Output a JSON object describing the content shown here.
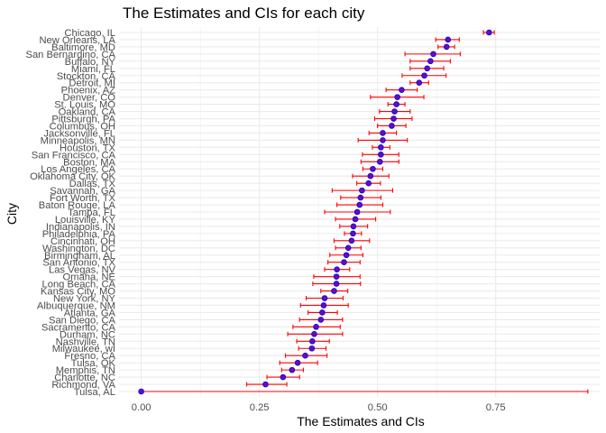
{
  "chart_data": {
    "type": "scatter",
    "title": "The Estimates and CIs for each city",
    "xlabel": "The Estimates and CIs",
    "ylabel": "City",
    "xlim": [
      -0.047,
      0.97
    ],
    "x_ticks": [
      0,
      0.25,
      0.5,
      0.75
    ],
    "x_tick_labels": [
      "0.00",
      "0.25",
      "0.50",
      "0.75"
    ],
    "grid": true,
    "error_bar_color": "#ff0000",
    "point_color": "#6a0dad",
    "point_outline_color": "#0000ff",
    "gridline_color": "#ebebeb",
    "series": [
      {
        "points": [
          {
            "city": "Chicago, IL",
            "estimate": 0.736,
            "lower": 0.724,
            "upper": 0.747
          },
          {
            "city": "New Orleans, LA",
            "estimate": 0.649,
            "lower": 0.623,
            "upper": 0.673
          },
          {
            "city": "Baltimore, MD",
            "estimate": 0.646,
            "lower": 0.628,
            "upper": 0.663
          },
          {
            "city": "San Bernardino, CA",
            "estimate": 0.618,
            "lower": 0.558,
            "upper": 0.675
          },
          {
            "city": "Buffalo, NY",
            "estimate": 0.612,
            "lower": 0.569,
            "upper": 0.654
          },
          {
            "city": "Miami, FL",
            "estimate": 0.605,
            "lower": 0.569,
            "upper": 0.64
          },
          {
            "city": "Stockton, CA",
            "estimate": 0.599,
            "lower": 0.552,
            "upper": 0.645
          },
          {
            "city": "Detroit, MI",
            "estimate": 0.588,
            "lower": 0.569,
            "upper": 0.608
          },
          {
            "city": "Phoenix, AZ",
            "estimate": 0.551,
            "lower": 0.518,
            "upper": 0.584
          },
          {
            "city": "Denver, CO",
            "estimate": 0.542,
            "lower": 0.485,
            "upper": 0.598
          },
          {
            "city": "St. Louis, MO",
            "estimate": 0.54,
            "lower": 0.522,
            "upper": 0.558
          },
          {
            "city": "Oakland, CA",
            "estimate": 0.536,
            "lower": 0.504,
            "upper": 0.569
          },
          {
            "city": "Pittsburgh, PA",
            "estimate": 0.534,
            "lower": 0.494,
            "upper": 0.573
          },
          {
            "city": "Columbus, OH",
            "estimate": 0.53,
            "lower": 0.5,
            "upper": 0.56
          },
          {
            "city": "Jacksonville, FL",
            "estimate": 0.511,
            "lower": 0.482,
            "upper": 0.54
          },
          {
            "city": "Minneapolis, MN",
            "estimate": 0.511,
            "lower": 0.459,
            "upper": 0.563
          },
          {
            "city": "Houston, TX",
            "estimate": 0.507,
            "lower": 0.489,
            "upper": 0.526
          },
          {
            "city": "San Francisco, CA",
            "estimate": 0.507,
            "lower": 0.468,
            "upper": 0.545
          },
          {
            "city": "Boston, MA",
            "estimate": 0.505,
            "lower": 0.465,
            "upper": 0.545
          },
          {
            "city": "Los Angeles, CA",
            "estimate": 0.49,
            "lower": 0.469,
            "upper": 0.511
          },
          {
            "city": "Oklahoma City, OK",
            "estimate": 0.485,
            "lower": 0.447,
            "upper": 0.524
          },
          {
            "city": "Dallas, TX",
            "estimate": 0.481,
            "lower": 0.456,
            "upper": 0.506
          },
          {
            "city": "Savannah, GA",
            "estimate": 0.467,
            "lower": 0.404,
            "upper": 0.532
          },
          {
            "city": "Fort Worth, TX",
            "estimate": 0.464,
            "lower": 0.422,
            "upper": 0.507
          },
          {
            "city": "Baton Rouge, LA",
            "estimate": 0.462,
            "lower": 0.414,
            "upper": 0.511
          },
          {
            "city": "Tampa, FL",
            "estimate": 0.457,
            "lower": 0.388,
            "upper": 0.527
          },
          {
            "city": "Louisville, KY",
            "estimate": 0.453,
            "lower": 0.411,
            "upper": 0.496
          },
          {
            "city": "Indianapolis, IN",
            "estimate": 0.449,
            "lower": 0.42,
            "upper": 0.479
          },
          {
            "city": "Philadelphia, PA",
            "estimate": 0.448,
            "lower": 0.43,
            "upper": 0.466
          },
          {
            "city": "Cincinnati, OH",
            "estimate": 0.445,
            "lower": 0.408,
            "upper": 0.483
          },
          {
            "city": "Washington, DC",
            "estimate": 0.438,
            "lower": 0.411,
            "upper": 0.465
          },
          {
            "city": "Birmingham, AL",
            "estimate": 0.434,
            "lower": 0.399,
            "upper": 0.469
          },
          {
            "city": "San Antonio, TX",
            "estimate": 0.429,
            "lower": 0.395,
            "upper": 0.463
          },
          {
            "city": "Las Vegas, NV",
            "estimate": 0.414,
            "lower": 0.388,
            "upper": 0.441
          },
          {
            "city": "Omaha, NE",
            "estimate": 0.413,
            "lower": 0.365,
            "upper": 0.463
          },
          {
            "city": "Long Beach, CA",
            "estimate": 0.413,
            "lower": 0.363,
            "upper": 0.464
          },
          {
            "city": "Kansas City, MO",
            "estimate": 0.408,
            "lower": 0.38,
            "upper": 0.437
          },
          {
            "city": "New York, NY",
            "estimate": 0.388,
            "lower": 0.349,
            "upper": 0.427
          },
          {
            "city": "Albuquerque, NM",
            "estimate": 0.386,
            "lower": 0.337,
            "upper": 0.438
          },
          {
            "city": "Atlanta, GA",
            "estimate": 0.383,
            "lower": 0.353,
            "upper": 0.415
          },
          {
            "city": "San Diego, CA",
            "estimate": 0.38,
            "lower": 0.335,
            "upper": 0.426
          },
          {
            "city": "Sacramento, CA",
            "estimate": 0.37,
            "lower": 0.321,
            "upper": 0.421
          },
          {
            "city": "Durham, NC",
            "estimate": 0.366,
            "lower": 0.31,
            "upper": 0.426
          },
          {
            "city": "Nashville, TN",
            "estimate": 0.362,
            "lower": 0.329,
            "upper": 0.398
          },
          {
            "city": "Milwaukee, wI",
            "estimate": 0.361,
            "lower": 0.333,
            "upper": 0.391
          },
          {
            "city": "Fresno, CA",
            "estimate": 0.347,
            "lower": 0.305,
            "upper": 0.393
          },
          {
            "city": "Tulsa, OK",
            "estimate": 0.331,
            "lower": 0.293,
            "upper": 0.373
          },
          {
            "city": "Memphis, TN",
            "estimate": 0.319,
            "lower": 0.297,
            "upper": 0.343
          },
          {
            "city": "Charlotte, NC",
            "estimate": 0.3,
            "lower": 0.266,
            "upper": 0.335
          },
          {
            "city": "Richmond, VA",
            "estimate": 0.263,
            "lower": 0.223,
            "upper": 0.308
          },
          {
            "city": "Tulsa, AL",
            "estimate": 0.0,
            "lower": 0.0,
            "upper": 0.945
          }
        ]
      }
    ]
  }
}
